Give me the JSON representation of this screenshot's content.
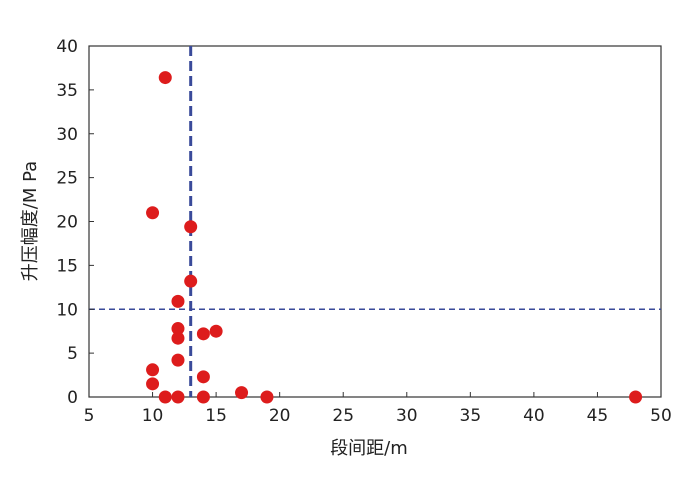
{
  "chart_data": {
    "type": "scatter",
    "xlabel": "段间距/m",
    "ylabel": "升压幅度/M Pa",
    "xlim": [
      5,
      50
    ],
    "ylim": [
      0,
      40
    ],
    "x_ticks": [
      "5",
      "10",
      "15",
      "20",
      "25",
      "30",
      "35",
      "40",
      "45",
      "50"
    ],
    "y_ticks": [
      "0",
      "5",
      "10",
      "15",
      "20",
      "25",
      "30",
      "35",
      "40"
    ],
    "grid": false,
    "reference_lines": [
      {
        "orientation": "vertical",
        "x": 13
      },
      {
        "orientation": "horizontal",
        "y": 10
      }
    ],
    "series": [
      {
        "points": [
          {
            "x": 11,
            "y": 36.4
          },
          {
            "x": 10,
            "y": 21.0
          },
          {
            "x": 13,
            "y": 19.4
          },
          {
            "x": 13,
            "y": 13.2
          },
          {
            "x": 12,
            "y": 10.9
          },
          {
            "x": 12,
            "y": 7.8
          },
          {
            "x": 12,
            "y": 6.7
          },
          {
            "x": 14,
            "y": 7.2
          },
          {
            "x": 15,
            "y": 7.5
          },
          {
            "x": 12,
            "y": 4.2
          },
          {
            "x": 10,
            "y": 3.1
          },
          {
            "x": 10,
            "y": 1.5
          },
          {
            "x": 14,
            "y": 2.3
          },
          {
            "x": 11,
            "y": 0.0
          },
          {
            "x": 12,
            "y": 0.0
          },
          {
            "x": 14,
            "y": 0.0
          },
          {
            "x": 17,
            "y": 0.5
          },
          {
            "x": 19,
            "y": 0.0
          },
          {
            "x": 48,
            "y": 0.0
          }
        ]
      }
    ]
  },
  "colors": {
    "marker": "#dd1c1c",
    "reference_line": "#3a4a9a",
    "axis": "#333333"
  }
}
